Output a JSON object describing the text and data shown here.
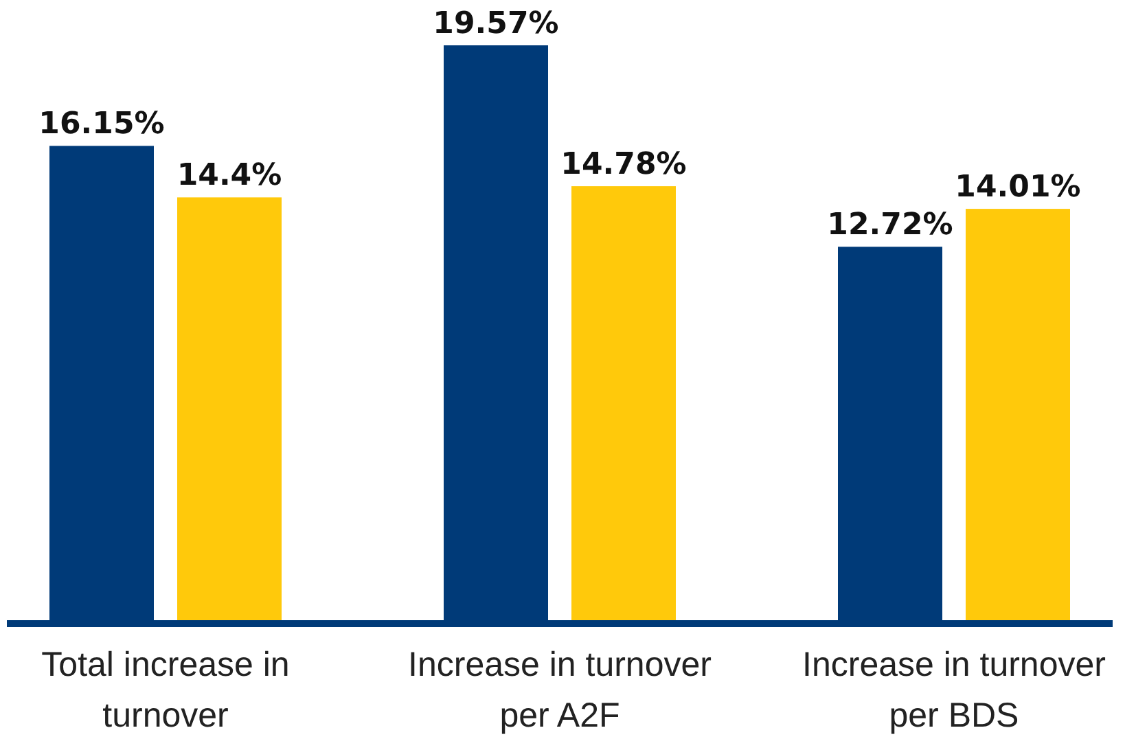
{
  "chart_data": {
    "type": "bar",
    "categories": [
      "Total increase in turnover",
      "Increase in turnover per A2F",
      "Increase in turnover per BDS"
    ],
    "series": [
      {
        "color": "#003a78",
        "values": [
          16.15,
          19.57,
          12.72
        ],
        "value_labels": [
          "16.15%",
          "19.57%",
          "12.72%"
        ]
      },
      {
        "color": "#ffc90b",
        "values": [
          14.4,
          14.78,
          14.01
        ],
        "value_labels": [
          "14.4%",
          "14.78%",
          "14.01%"
        ]
      }
    ]
  }
}
